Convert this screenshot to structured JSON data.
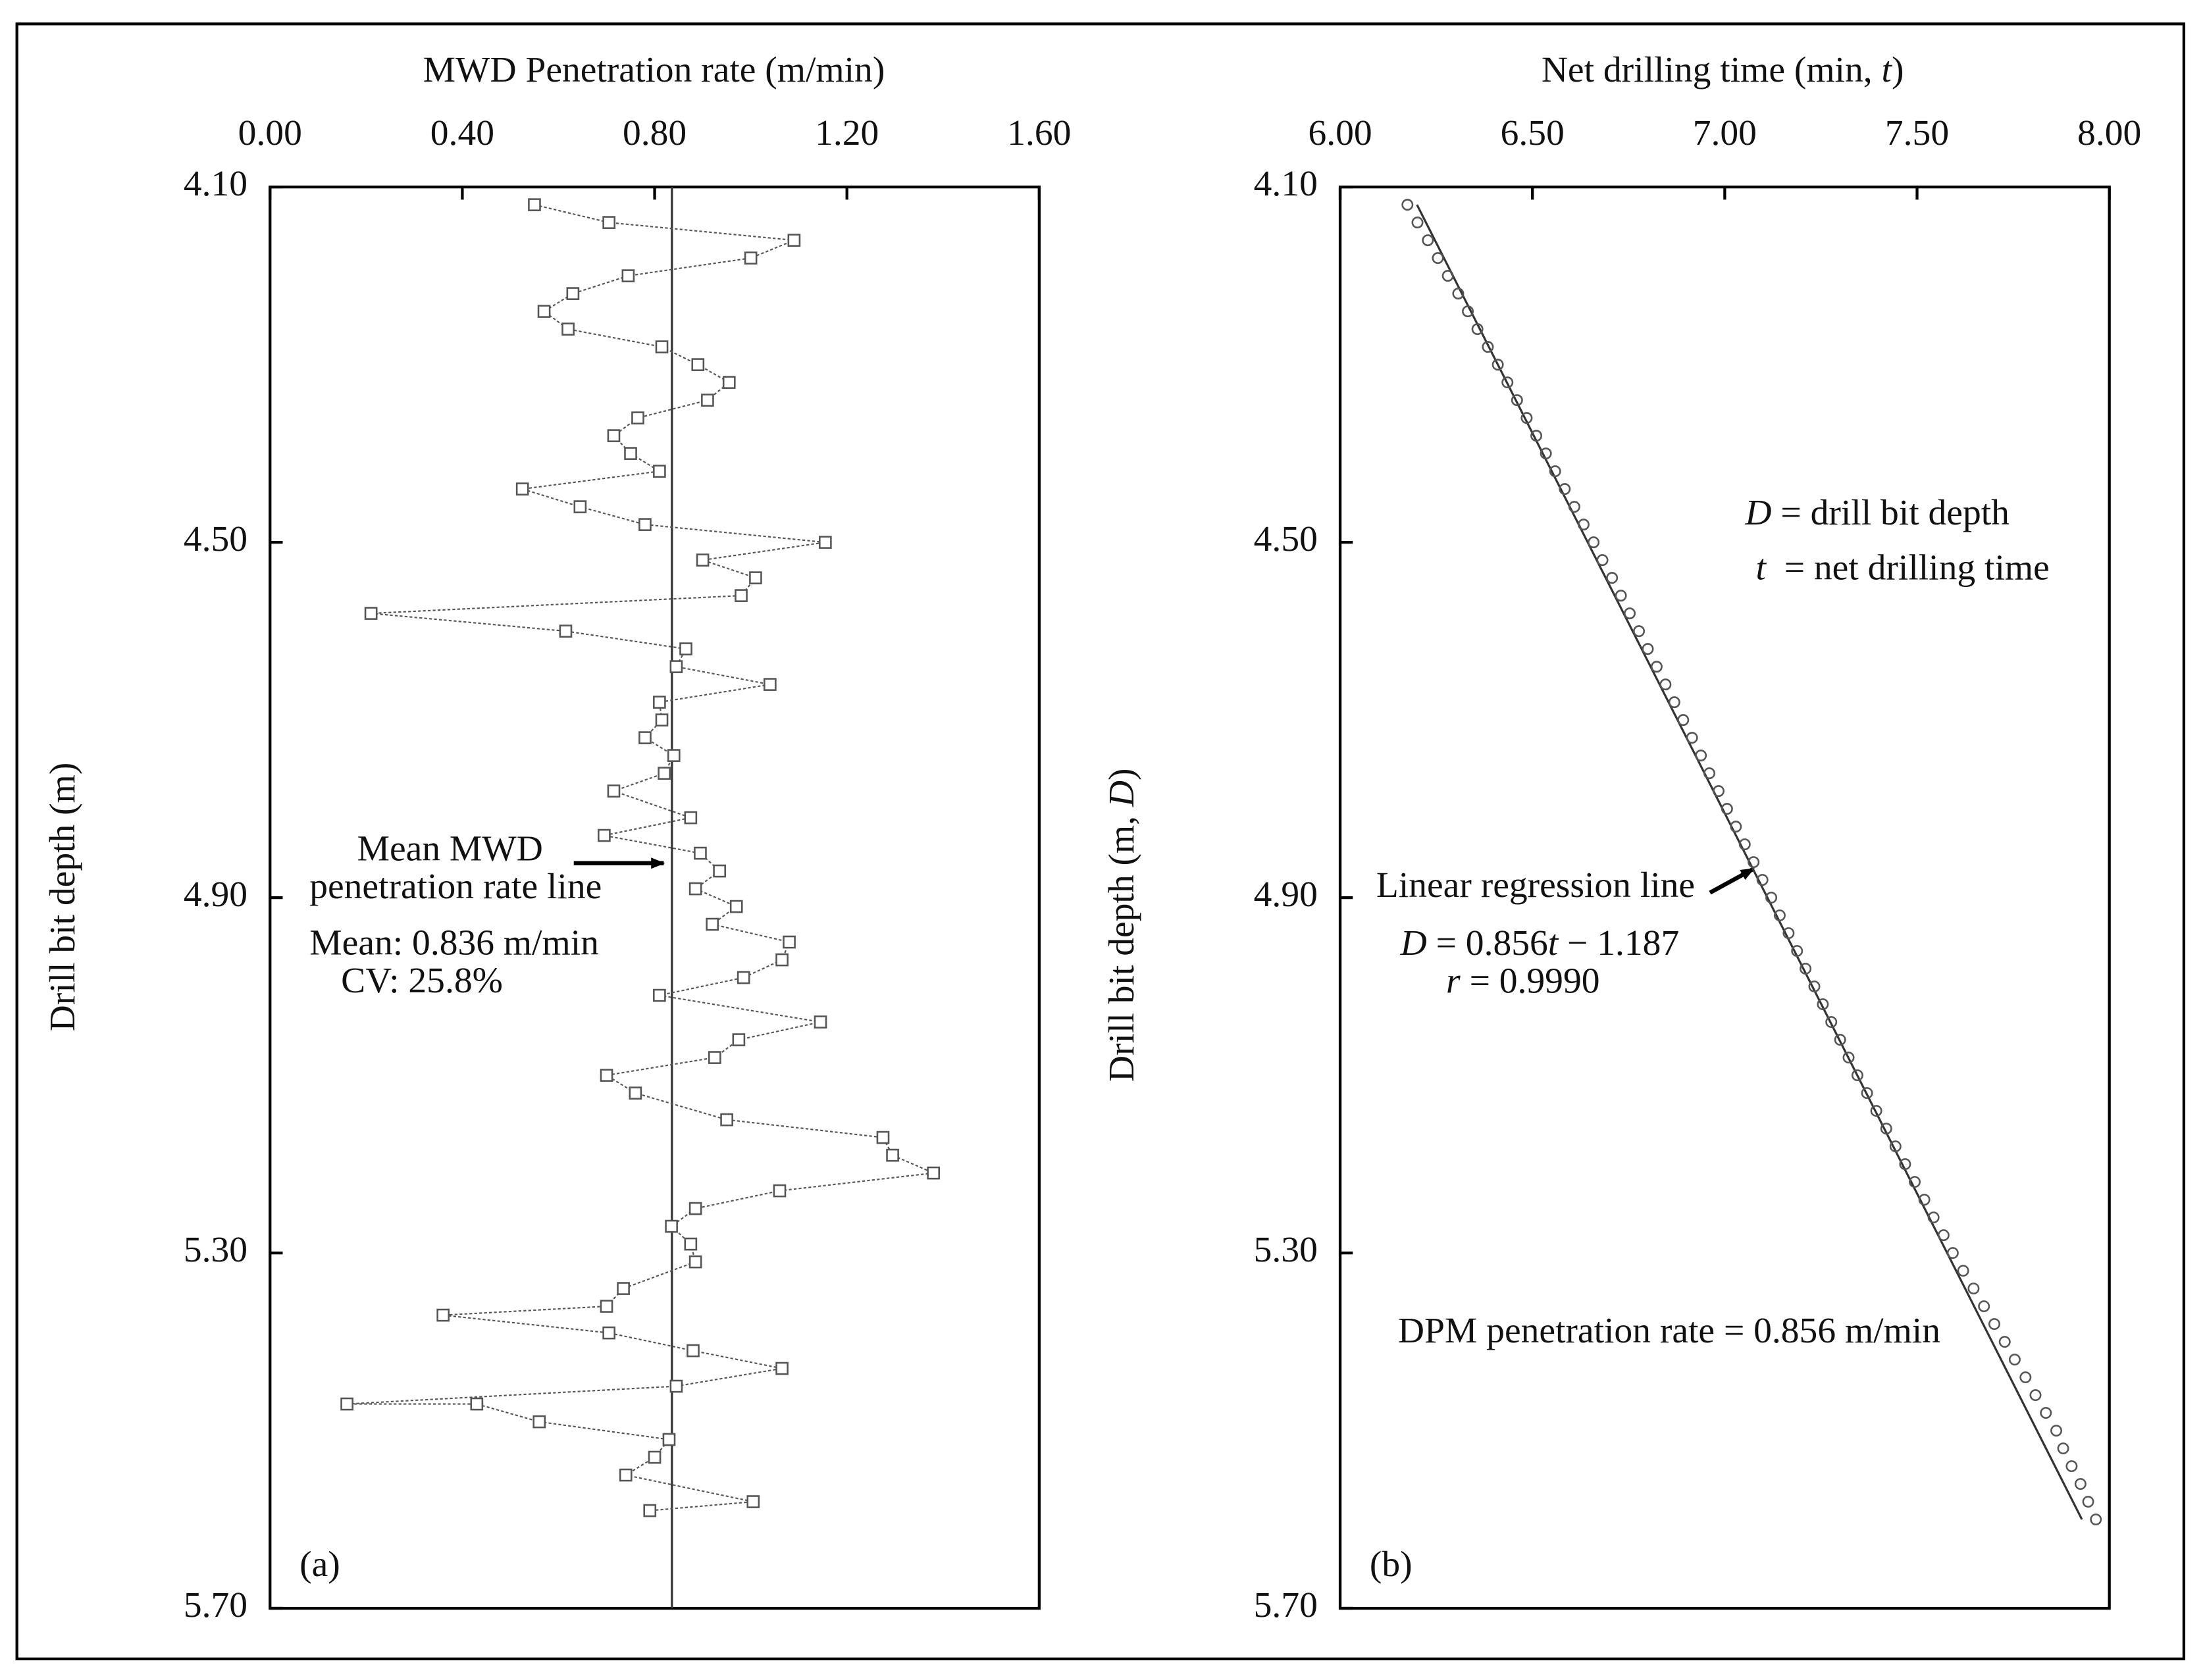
{
  "chart_data": [
    {
      "type": "line",
      "label": "(a)",
      "title": "MWD Penetration rate (m/min)",
      "ylabel": "Drill bit depth (m)",
      "xlim": [
        0,
        1.6
      ],
      "xticks": [
        {
          "value": 0,
          "label": "0.00"
        },
        {
          "value": 0.4,
          "label": "0.40"
        },
        {
          "value": 0.8,
          "label": "0.80"
        },
        {
          "value": 1.2,
          "label": "1.20"
        },
        {
          "value": 1.6,
          "label": "1.60"
        }
      ],
      "ylim": [
        4.1,
        5.7
      ],
      "yticks": [
        {
          "value": 4.1,
          "label": "4.10"
        },
        {
          "value": 4.5,
          "label": "4.50"
        },
        {
          "value": 4.9,
          "label": "4.90"
        },
        {
          "value": 5.3,
          "label": "5.30"
        },
        {
          "value": 5.7,
          "label": "5.70"
        }
      ],
      "y_reversed": true,
      "color": "#555555",
      "mean": 0.836,
      "annotations": [
        "Mean MWD",
        "penetration rate line",
        "Mean: 0.836 m/min",
        "CV: 25.8%"
      ],
      "x": [
        0.55,
        0.705,
        1.09,
        1.0,
        0.745,
        0.63,
        0.57,
        0.62,
        0.815,
        0.89,
        0.955,
        0.91,
        0.765,
        0.715,
        0.75,
        0.81,
        0.525,
        0.645,
        0.78,
        1.155,
        0.9,
        1.01,
        0.98,
        0.21,
        0.615,
        0.865,
        0.845,
        1.04,
        0.81,
        0.815,
        0.78,
        0.84,
        0.82,
        0.715,
        0.875,
        0.695,
        0.895,
        0.935,
        0.885,
        0.97,
        0.92,
        1.08,
        1.065,
        0.985,
        0.81,
        1.145,
        0.975,
        0.925,
        0.7,
        0.76,
        0.95,
        1.275,
        1.295,
        1.38,
        1.06,
        0.885,
        0.835,
        0.875,
        0.885,
        0.735,
        0.7,
        0.36,
        0.705,
        0.88,
        1.065,
        0.845,
        0.16,
        0.43,
        0.56,
        0.83,
        0.8,
        0.74,
        1.005,
        0.79
      ],
      "y": [
        4.12,
        4.14,
        4.16,
        4.18,
        4.2,
        4.22,
        4.24,
        4.26,
        4.28,
        4.3,
        4.32,
        4.34,
        4.36,
        4.38,
        4.4,
        4.42,
        4.44,
        4.46,
        4.48,
        4.5,
        4.52,
        4.54,
        4.56,
        4.58,
        4.6,
        4.62,
        4.64,
        4.66,
        4.68,
        4.7,
        4.72,
        4.74,
        4.76,
        4.78,
        4.81,
        4.83,
        4.85,
        4.87,
        4.89,
        4.91,
        4.93,
        4.95,
        4.97,
        4.99,
        5.01,
        5.04,
        5.06,
        5.08,
        5.1,
        5.12,
        5.15,
        5.17,
        5.19,
        5.21,
        5.23,
        5.25,
        5.27,
        5.29,
        5.31,
        5.34,
        5.36,
        5.37,
        5.39,
        5.41,
        5.43,
        5.45,
        5.47,
        5.47,
        5.49,
        5.51,
        5.53,
        5.55,
        5.58,
        5.59
      ]
    },
    {
      "type": "scatter",
      "label": "(b)",
      "title": [
        "Net drilling time (min, ",
        "t",
        ")"
      ],
      "ylabel": [
        "Drill bit depth (m, ",
        "D",
        ")"
      ],
      "xlim": [
        6,
        8
      ],
      "xticks": [
        {
          "value": 6,
          "label": "6.00"
        },
        {
          "value": 6.5,
          "label": "6.50"
        },
        {
          "value": 7,
          "label": "7.00"
        },
        {
          "value": 7.5,
          "label": "7.50"
        },
        {
          "value": 8,
          "label": "8.00"
        }
      ],
      "ylim": [
        4.1,
        5.7
      ],
      "yticks": [
        {
          "value": 4.1,
          "label": "4.10"
        },
        {
          "value": 4.5,
          "label": "4.50"
        },
        {
          "value": 4.9,
          "label": "4.90"
        },
        {
          "value": 5.3,
          "label": "5.30"
        },
        {
          "value": 5.7,
          "label": "5.70"
        }
      ],
      "y_reversed": true,
      "color": "#555555",
      "slope": 0.856,
      "intercept": -1.187,
      "notes": [
        [
          "D",
          " = drill bit depth"
        ],
        [
          "t",
          "  = net drilling time"
        ]
      ],
      "regression_label": "Linear regression line",
      "equation": [
        "D",
        " = 0.856",
        "t",
        " − 1.187"
      ],
      "r": [
        "r",
        " = 0.9990"
      ],
      "rate_note": "DPM penetration rate = 0.856 m/min",
      "x": [
        6.175,
        6.201,
        6.228,
        6.254,
        6.28,
        6.307,
        6.332,
        6.357,
        6.384,
        6.41,
        6.435,
        6.46,
        6.485,
        6.51,
        6.535,
        6.559,
        6.584,
        6.609,
        6.633,
        6.659,
        6.682,
        6.707,
        6.73,
        6.753,
        6.777,
        6.8,
        6.823,
        6.846,
        6.869,
        6.892,
        6.915,
        6.938,
        6.96,
        6.984,
        7.006,
        7.029,
        7.052,
        7.075,
        7.098,
        7.121,
        7.143,
        7.166,
        7.188,
        7.21,
        7.233,
        7.255,
        7.277,
        7.3,
        7.322,
        7.345,
        7.37,
        7.394,
        7.42,
        7.444,
        7.469,
        7.494,
        7.519,
        7.543,
        7.569,
        7.593,
        7.62,
        7.647,
        7.674,
        7.701,
        7.728,
        7.754,
        7.782,
        7.808,
        7.835,
        7.862,
        7.88,
        7.902,
        7.925,
        7.945,
        7.965
      ],
      "y": [
        4.12,
        4.14,
        4.16,
        4.18,
        4.2,
        4.22,
        4.24,
        4.26,
        4.28,
        4.3,
        4.32,
        4.34,
        4.36,
        4.38,
        4.4,
        4.42,
        4.44,
        4.46,
        4.48,
        4.5,
        4.52,
        4.54,
        4.56,
        4.58,
        4.6,
        4.62,
        4.64,
        4.66,
        4.68,
        4.7,
        4.72,
        4.74,
        4.76,
        4.78,
        4.8,
        4.82,
        4.84,
        4.86,
        4.88,
        4.9,
        4.92,
        4.94,
        4.96,
        4.98,
        5.0,
        5.02,
        5.04,
        5.06,
        5.08,
        5.1,
        5.12,
        5.14,
        5.16,
        5.18,
        5.2,
        5.22,
        5.24,
        5.26,
        5.28,
        5.3,
        5.32,
        5.34,
        5.36,
        5.38,
        5.4,
        5.42,
        5.44,
        5.46,
        5.48,
        5.5,
        5.52,
        5.54,
        5.56,
        5.58,
        5.6
      ]
    }
  ]
}
